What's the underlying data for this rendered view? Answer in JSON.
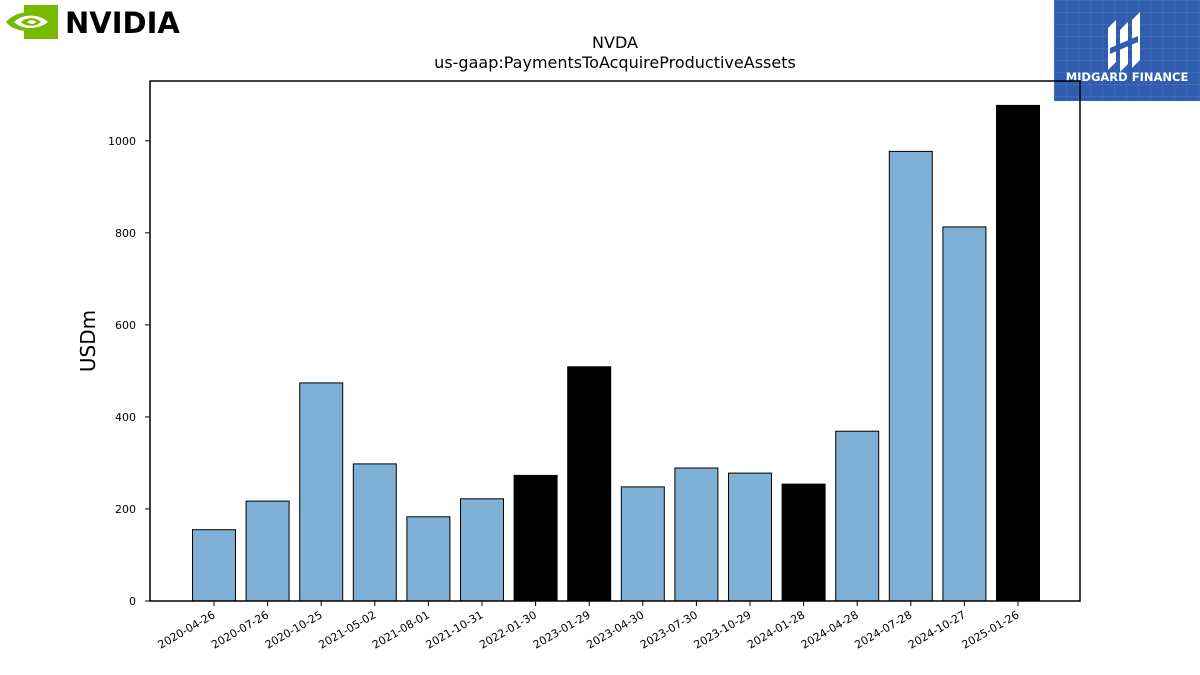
{
  "logos": {
    "nvidia_text": "NVIDIA",
    "nvidia_color": "#76b900",
    "midgard_text": "MIDGARD FINANCE",
    "midgard_color": "#2f5db0"
  },
  "chart_data": {
    "type": "bar",
    "title": "NVDA",
    "subtitle": "us-gaap:PaymentsToAcquireProductiveAssets",
    "xlabel": "",
    "ylabel": "USDm",
    "ylim": [
      0,
      1130
    ],
    "yticks": [
      0,
      200,
      400,
      600,
      800,
      1000
    ],
    "grid": false,
    "categories": [
      "2020-04-26",
      "2020-07-26",
      "2020-10-25",
      "2021-05-02",
      "2021-08-01",
      "2021-10-31",
      "2022-01-30",
      "2023-01-29",
      "2023-04-30",
      "2023-07-30",
      "2023-10-29",
      "2024-01-28",
      "2024-04-28",
      "2024-07-28",
      "2024-10-27",
      "2025-01-26"
    ],
    "values": [
      155,
      217,
      474,
      298,
      183,
      222,
      273,
      509,
      248,
      289,
      278,
      254,
      369,
      977,
      813,
      1077
    ],
    "highlighted": [
      false,
      false,
      false,
      false,
      false,
      false,
      true,
      true,
      false,
      false,
      false,
      true,
      false,
      false,
      false,
      true
    ],
    "colors": {
      "regular": "#7fb0d5",
      "highlighted": "#000000",
      "edge": "#000000"
    }
  }
}
